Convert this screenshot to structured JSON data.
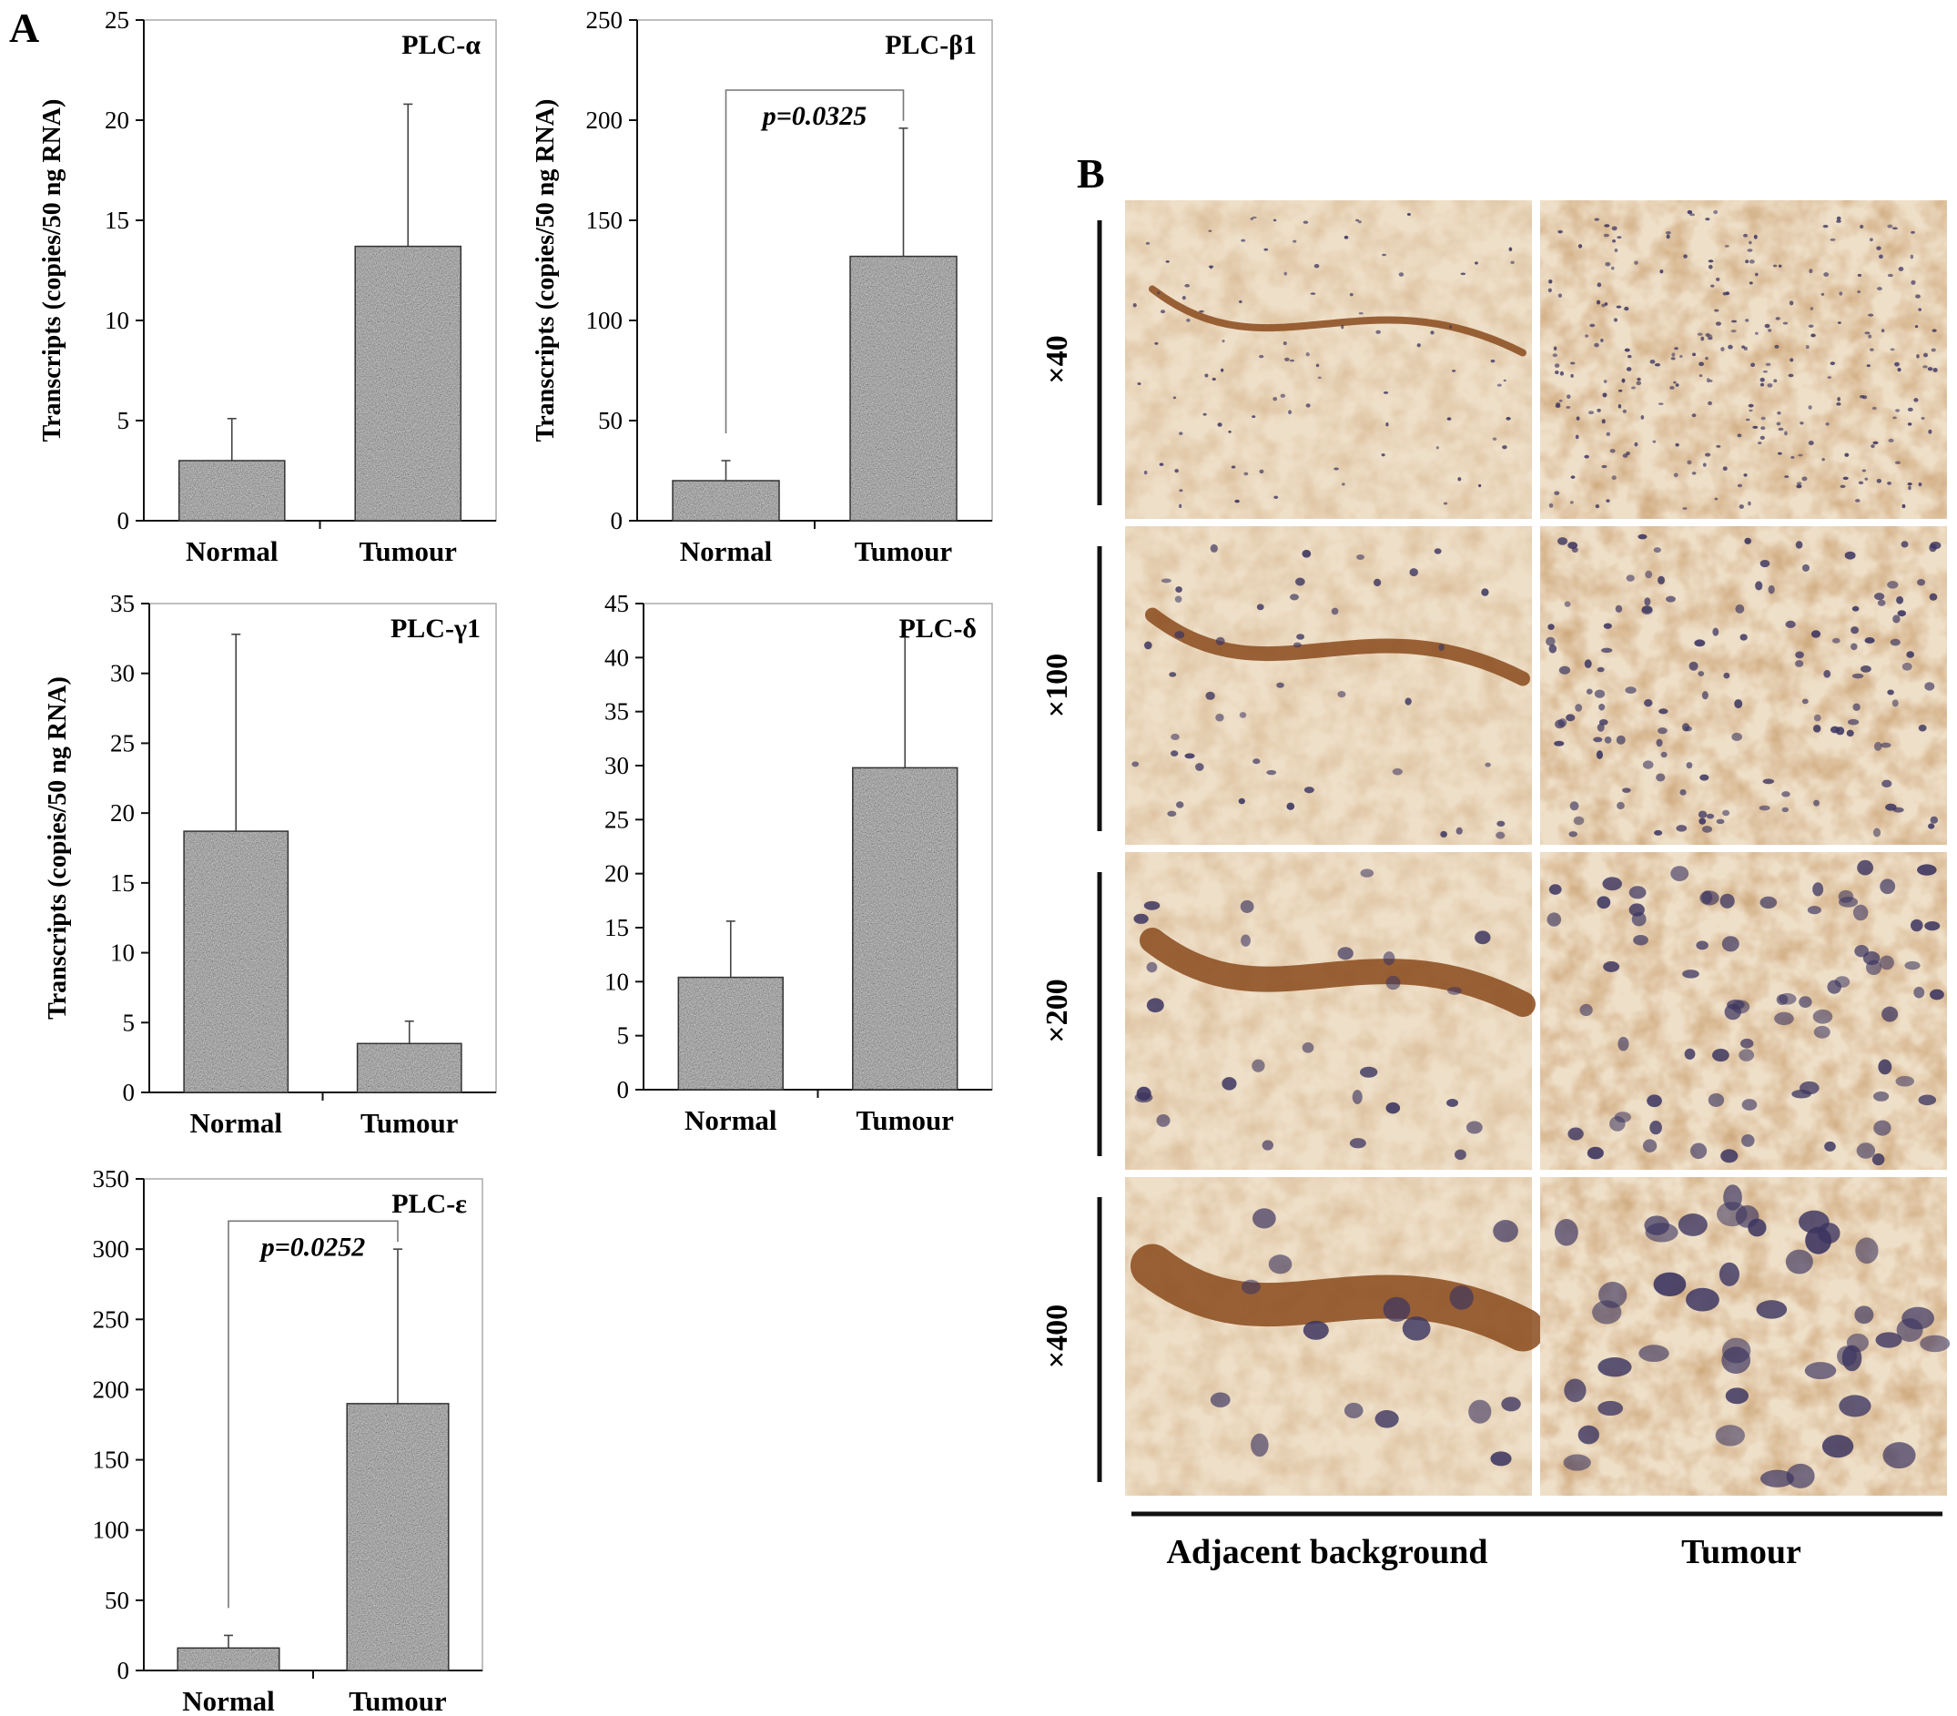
{
  "figure": {
    "panel_a_label": "A",
    "panel_b_label": "B",
    "colors": {
      "bar_base": "#8c8c8c",
      "tissue_bg": "#eedfc8",
      "stain": "#8a4a1c",
      "nuclei": "#3c3560"
    }
  },
  "chart_data": [
    {
      "type": "bar",
      "title": "PLC-α",
      "categories": [
        "Normal",
        "Tumour"
      ],
      "values": [
        3.0,
        13.7
      ],
      "errors": [
        2.1,
        7.1
      ],
      "ylabel": "Transcripts (copies/50 ng RNA)",
      "ylim": [
        0,
        25
      ],
      "yticks": [
        0,
        5,
        10,
        15,
        20,
        25
      ],
      "annotation": null
    },
    {
      "type": "bar",
      "title": "PLC-β1",
      "categories": [
        "Normal",
        "Tumour"
      ],
      "values": [
        20,
        132
      ],
      "errors": [
        10,
        64
      ],
      "ylabel": "Transcripts (copies/50 ng RNA)",
      "ylim": [
        0,
        250
      ],
      "yticks": [
        0,
        50,
        100,
        150,
        200,
        250
      ],
      "annotation": "p=0.0325",
      "bracket_y": 215
    },
    {
      "type": "bar",
      "title": "PLC-γ1",
      "categories": [
        "Normal",
        "Tumour"
      ],
      "values": [
        18.7,
        3.5
      ],
      "errors": [
        14.1,
        1.6
      ],
      "ylabel": "Transcripts (copies/50 ng RNA)",
      "ylim": [
        0,
        35
      ],
      "yticks": [
        0,
        5,
        10,
        15,
        20,
        25,
        30,
        35
      ],
      "annotation": null
    },
    {
      "type": "bar",
      "title": "PLC-δ",
      "categories": [
        "Normal",
        "Tumour"
      ],
      "values": [
        10.4,
        29.8
      ],
      "errors": [
        5.2,
        12.1
      ],
      "ylabel": "",
      "ylim": [
        0,
        45
      ],
      "yticks": [
        0,
        5,
        10,
        15,
        20,
        25,
        30,
        35,
        40,
        45
      ],
      "annotation": null
    },
    {
      "type": "bar",
      "title": "PLC-ε",
      "categories": [
        "Normal",
        "Tumour"
      ],
      "values": [
        16,
        190
      ],
      "errors": [
        9,
        110
      ],
      "ylabel": "",
      "ylim": [
        0,
        350
      ],
      "yticks": [
        0,
        50,
        100,
        150,
        200,
        250,
        300,
        350
      ],
      "annotation": "p=0.0252",
      "bracket_y": 320
    }
  ],
  "micrographs": {
    "magnifications": [
      "×40",
      "×100",
      "×200",
      "×400"
    ],
    "columns": [
      "Adjacent background",
      "Tumour"
    ]
  }
}
